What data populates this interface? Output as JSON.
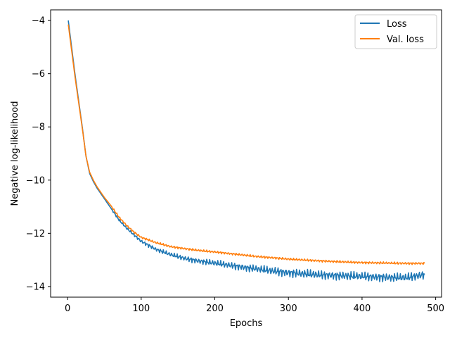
{
  "chart_data": {
    "type": "line",
    "xlabel": "Epochs",
    "ylabel": "Negative log-likelihood",
    "xlim": [
      -23,
      508
    ],
    "ylim": [
      -14.4,
      -3.6
    ],
    "xticks": [
      0,
      100,
      200,
      300,
      400,
      500
    ],
    "yticks": [
      -14,
      -12,
      -10,
      -8,
      -6,
      -4
    ],
    "xtick_labels": [
      "0",
      "100",
      "200",
      "300",
      "400",
      "500"
    ],
    "ytick_labels": [
      "−14",
      "−12",
      "−10",
      "−8",
      "−6",
      "−4"
    ],
    "grid": false,
    "legend_position": "top-right",
    "x": [
      1,
      10,
      20,
      25,
      30,
      35,
      40,
      50,
      60,
      70,
      80,
      90,
      100,
      120,
      140,
      160,
      180,
      200,
      220,
      240,
      260,
      280,
      300,
      320,
      340,
      360,
      380,
      400,
      420,
      440,
      460,
      485
    ],
    "series": [
      {
        "name": "Loss",
        "color": "#1f77b4",
        "values": [
          -4.0,
          -6.0,
          -8.0,
          -9.1,
          -9.75,
          -10.05,
          -10.3,
          -10.7,
          -11.1,
          -11.5,
          -11.8,
          -12.05,
          -12.3,
          -12.6,
          -12.8,
          -12.95,
          -13.05,
          -13.12,
          -13.2,
          -13.28,
          -13.35,
          -13.42,
          -13.48,
          -13.52,
          -13.56,
          -13.58,
          -13.6,
          -13.62,
          -13.64,
          -13.66,
          -13.67,
          -13.55
        ]
      },
      {
        "name": "Val. loss",
        "color": "#ff7f0e",
        "values": [
          -4.15,
          -6.1,
          -8.05,
          -9.1,
          -9.7,
          -10.0,
          -10.25,
          -10.65,
          -11.0,
          -11.4,
          -11.7,
          -11.95,
          -12.15,
          -12.35,
          -12.5,
          -12.58,
          -12.65,
          -12.7,
          -12.76,
          -12.82,
          -12.88,
          -12.92,
          -12.97,
          -13.0,
          -13.03,
          -13.06,
          -13.08,
          -13.1,
          -13.11,
          -13.12,
          -13.13,
          -13.13
        ]
      }
    ]
  }
}
